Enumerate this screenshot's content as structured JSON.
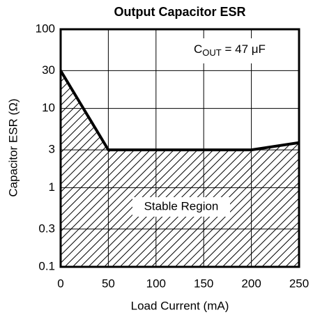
{
  "chart_data": {
    "type": "line",
    "title": "Output Capacitor ESR",
    "xlabel": "Load Current (mA)",
    "ylabel": "Capacitor ESR (Ω)",
    "x": [
      0,
      50,
      200,
      250
    ],
    "series": [
      {
        "name": "Stable Region",
        "color": "#000000",
        "values": [
          30,
          3,
          3,
          3.7
        ]
      }
    ],
    "xlim": [
      0,
      250
    ],
    "xticks": [
      0,
      50,
      100,
      150,
      200,
      250
    ],
    "ylim": [
      0.1,
      100
    ],
    "yticks": [
      0.1,
      0.3,
      1,
      3,
      10,
      30,
      100
    ],
    "yscale": "log",
    "grid": true,
    "annotation": {
      "symbol": "C",
      "subscript": "OUT",
      "text": " = 47 μF"
    }
  }
}
